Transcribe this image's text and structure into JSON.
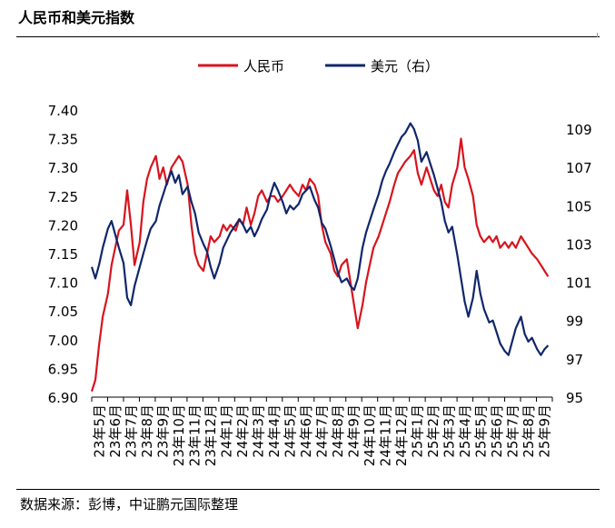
{
  "title": "人民币和美元指数",
  "source": "数据来源：彭博，中证鹏元国际整理",
  "colors": {
    "cny": "#d7141e",
    "usd": "#10266b"
  },
  "chart_data": {
    "type": "line",
    "series": [
      {
        "name": "人民币",
        "axis": "left",
        "x": [
          "2023-05-01",
          "2023-05-08",
          "2023-05-15",
          "2023-05-22",
          "2023-06-01",
          "2023-06-08",
          "2023-06-15",
          "2023-06-22",
          "2023-07-01",
          "2023-07-08",
          "2023-07-15",
          "2023-07-22",
          "2023-08-01",
          "2023-08-08",
          "2023-08-15",
          "2023-08-22",
          "2023-09-01",
          "2023-09-08",
          "2023-09-15",
          "2023-09-22",
          "2023-10-01",
          "2023-10-08",
          "2023-10-15",
          "2023-10-22",
          "2023-11-01",
          "2023-11-08",
          "2023-11-15",
          "2023-11-22",
          "2023-12-01",
          "2023-12-08",
          "2023-12-15",
          "2023-12-22",
          "2024-01-01",
          "2024-01-08",
          "2024-01-15",
          "2024-01-22",
          "2024-02-01",
          "2024-02-08",
          "2024-02-15",
          "2024-02-22",
          "2024-03-01",
          "2024-03-08",
          "2024-03-15",
          "2024-03-22",
          "2024-04-01",
          "2024-04-08",
          "2024-04-15",
          "2024-04-22",
          "2024-05-01",
          "2024-05-08",
          "2024-05-15",
          "2024-05-22",
          "2024-06-01",
          "2024-06-08",
          "2024-06-15",
          "2024-06-22",
          "2024-07-01",
          "2024-07-08",
          "2024-07-15",
          "2024-07-22",
          "2024-08-01",
          "2024-08-08",
          "2024-08-15",
          "2024-08-22",
          "2024-09-01",
          "2024-09-08",
          "2024-09-15",
          "2024-09-22",
          "2024-10-01",
          "2024-10-08",
          "2024-10-15",
          "2024-10-22",
          "2024-11-01",
          "2024-11-08",
          "2024-11-15",
          "2024-11-22",
          "2024-12-01",
          "2024-12-08",
          "2024-12-15",
          "2024-12-22",
          "2025-01-01",
          "2025-01-08",
          "2025-01-15",
          "2025-01-22",
          "2025-02-01",
          "2025-02-08",
          "2025-02-15",
          "2025-02-22",
          "2025-03-01",
          "2025-03-08",
          "2025-03-15",
          "2025-03-22",
          "2025-04-01",
          "2025-04-08",
          "2025-04-15",
          "2025-04-22",
          "2025-05-01",
          "2025-05-08",
          "2025-05-15",
          "2025-05-22",
          "2025-06-01",
          "2025-06-08",
          "2025-06-15",
          "2025-06-22",
          "2025-07-01",
          "2025-07-08",
          "2025-07-15",
          "2025-07-22",
          "2025-08-01",
          "2025-08-08",
          "2025-08-15",
          "2025-08-22",
          "2025-09-01",
          "2025-09-08",
          "2025-09-15",
          "2025-09-22"
        ],
        "values": [
          6.91,
          6.93,
          6.99,
          7.04,
          7.08,
          7.13,
          7.16,
          7.19,
          7.2,
          7.26,
          7.2,
          7.13,
          7.17,
          7.24,
          7.28,
          7.3,
          7.32,
          7.28,
          7.3,
          7.27,
          7.3,
          7.31,
          7.32,
          7.31,
          7.27,
          7.2,
          7.15,
          7.13,
          7.12,
          7.15,
          7.18,
          7.17,
          7.18,
          7.2,
          7.19,
          7.2,
          7.19,
          7.21,
          7.2,
          7.23,
          7.2,
          7.22,
          7.25,
          7.26,
          7.24,
          7.25,
          7.25,
          7.24,
          7.25,
          7.26,
          7.27,
          7.26,
          7.25,
          7.27,
          7.26,
          7.28,
          7.27,
          7.25,
          7.2,
          7.17,
          7.15,
          7.12,
          7.11,
          7.13,
          7.14,
          7.1,
          7.06,
          7.02,
          7.06,
          7.1,
          7.13,
          7.16,
          7.18,
          7.2,
          7.22,
          7.24,
          7.27,
          7.29,
          7.3,
          7.31,
          7.32,
          7.33,
          7.29,
          7.27,
          7.3,
          7.28,
          7.26,
          7.25,
          7.27,
          7.24,
          7.23,
          7.27,
          7.3,
          7.35,
          7.3,
          7.28,
          7.25,
          7.2,
          7.18,
          7.17,
          7.18,
          7.17,
          7.18,
          7.16,
          7.17,
          7.16,
          7.17,
          7.16,
          7.18,
          7.17,
          7.16,
          7.15,
          7.14,
          7.13,
          7.12,
          7.11
        ]
      },
      {
        "name": "美元（右）",
        "axis": "right",
        "x": [
          "2023-05-01",
          "2023-05-08",
          "2023-05-15",
          "2023-05-22",
          "2023-06-01",
          "2023-06-08",
          "2023-06-15",
          "2023-06-22",
          "2023-07-01",
          "2023-07-08",
          "2023-07-15",
          "2023-07-22",
          "2023-08-01",
          "2023-08-08",
          "2023-08-15",
          "2023-08-22",
          "2023-09-01",
          "2023-09-08",
          "2023-09-15",
          "2023-09-22",
          "2023-10-01",
          "2023-10-08",
          "2023-10-15",
          "2023-10-22",
          "2023-11-01",
          "2023-11-08",
          "2023-11-15",
          "2023-11-22",
          "2023-12-01",
          "2023-12-08",
          "2023-12-15",
          "2023-12-22",
          "2024-01-01",
          "2024-01-08",
          "2024-01-15",
          "2024-01-22",
          "2024-02-01",
          "2024-02-08",
          "2024-02-15",
          "2024-02-22",
          "2024-03-01",
          "2024-03-08",
          "2024-03-15",
          "2024-03-22",
          "2024-04-01",
          "2024-04-08",
          "2024-04-15",
          "2024-04-22",
          "2024-05-01",
          "2024-05-08",
          "2024-05-15",
          "2024-05-22",
          "2024-06-01",
          "2024-06-08",
          "2024-06-15",
          "2024-06-22",
          "2024-07-01",
          "2024-07-08",
          "2024-07-15",
          "2024-07-22",
          "2024-08-01",
          "2024-08-08",
          "2024-08-15",
          "2024-08-22",
          "2024-09-01",
          "2024-09-08",
          "2024-09-15",
          "2024-09-22",
          "2024-10-01",
          "2024-10-08",
          "2024-10-15",
          "2024-10-22",
          "2024-11-01",
          "2024-11-08",
          "2024-11-15",
          "2024-11-22",
          "2024-12-01",
          "2024-12-08",
          "2024-12-15",
          "2024-12-22",
          "2025-01-01",
          "2025-01-08",
          "2025-01-15",
          "2025-01-22",
          "2025-02-01",
          "2025-02-08",
          "2025-02-15",
          "2025-02-22",
          "2025-03-01",
          "2025-03-08",
          "2025-03-15",
          "2025-03-22",
          "2025-04-01",
          "2025-04-08",
          "2025-04-15",
          "2025-04-22",
          "2025-05-01",
          "2025-05-08",
          "2025-05-15",
          "2025-05-22",
          "2025-06-01",
          "2025-06-08",
          "2025-06-15",
          "2025-06-22",
          "2025-07-01",
          "2025-07-08",
          "2025-07-15",
          "2025-07-22",
          "2025-08-01",
          "2025-08-08",
          "2025-08-15",
          "2025-08-22",
          "2025-09-01",
          "2025-09-08",
          "2025-09-15",
          "2025-09-22"
        ],
        "values": [
          101.8,
          101.2,
          101.9,
          102.8,
          103.8,
          104.2,
          103.5,
          102.8,
          102.0,
          100.2,
          99.8,
          100.8,
          101.8,
          102.5,
          103.2,
          103.8,
          104.2,
          105.0,
          105.6,
          106.2,
          106.8,
          106.2,
          106.6,
          105.6,
          106.0,
          105.2,
          104.6,
          103.6,
          103.0,
          102.6,
          101.8,
          101.2,
          102.0,
          102.8,
          103.2,
          103.6,
          104.0,
          104.3,
          104.0,
          103.6,
          103.9,
          103.4,
          103.8,
          104.3,
          104.8,
          105.6,
          106.2,
          105.8,
          105.2,
          104.6,
          105.0,
          104.8,
          105.1,
          105.6,
          105.8,
          106.0,
          105.3,
          104.9,
          104.1,
          103.8,
          102.9,
          102.2,
          101.5,
          101.0,
          101.2,
          100.8,
          100.6,
          101.2,
          102.8,
          103.6,
          104.2,
          104.8,
          105.6,
          106.3,
          106.8,
          107.2,
          107.8,
          108.2,
          108.6,
          108.8,
          109.3,
          109.0,
          108.4,
          107.3,
          107.8,
          107.2,
          106.6,
          105.9,
          105.2,
          104.2,
          103.6,
          103.9,
          102.4,
          101.2,
          100.0,
          99.2,
          100.2,
          101.6,
          100.4,
          99.6,
          98.9,
          99.0,
          98.4,
          97.8,
          97.4,
          97.2,
          97.9,
          98.6,
          99.2,
          98.3,
          97.9,
          98.1,
          97.5,
          97.2,
          97.5,
          97.7
        ]
      }
    ],
    "y_left": {
      "ylim": [
        6.9,
        7.4
      ],
      "ticks": [
        "6.90",
        "6.95",
        "7.00",
        "7.05",
        "7.10",
        "7.15",
        "7.20",
        "7.25",
        "7.30",
        "7.35",
        "7.40"
      ]
    },
    "y_right": {
      "ylim": [
        95,
        110
      ],
      "ticks": [
        "95",
        "97",
        "99",
        "101",
        "103",
        "105",
        "107",
        "109"
      ]
    },
    "xlim": [
      "2023-05-01",
      "2025-09-30"
    ],
    "x_ticks": [
      "23年5月",
      "23年6月",
      "23年7月",
      "23年8月",
      "23年9月",
      "23年10月",
      "23年11月",
      "23年12月",
      "24年1月",
      "24年2月",
      "24年3月",
      "24年4月",
      "24年5月",
      "24年6月",
      "24年7月",
      "24年8月",
      "24年9月",
      "24年10月",
      "24年11月",
      "24年12月",
      "25年1月",
      "25年2月",
      "25年3月",
      "25年4月",
      "25年5月",
      "25年6月",
      "25年7月",
      "25年8月",
      "25年9月"
    ],
    "legend": "top",
    "grid": false
  }
}
